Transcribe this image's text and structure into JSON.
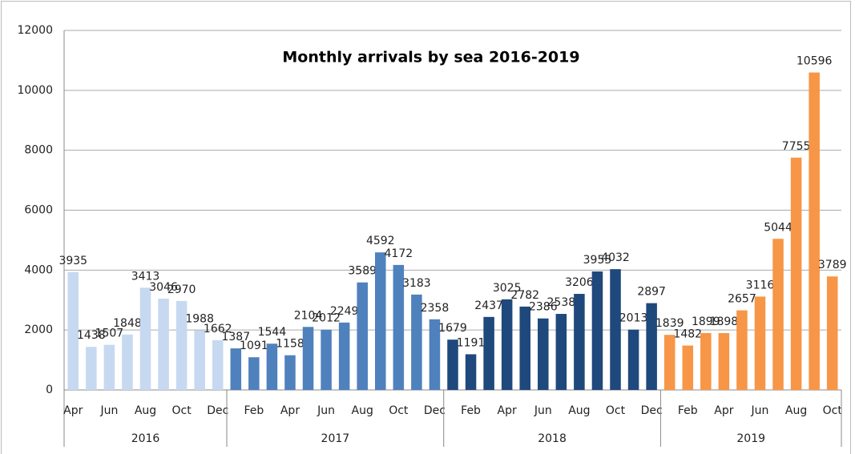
{
  "chart_data": {
    "type": "bar",
    "title": "Monthly arrivals by sea 2016-2019",
    "ylim": [
      0,
      12000
    ],
    "yticks": [
      0,
      2000,
      4000,
      6000,
      8000,
      10000,
      12000
    ],
    "grid": true,
    "series": [
      {
        "name": "2016",
        "color": "#c6d9f1",
        "categories": [
          "Apr",
          null,
          "Jun",
          null,
          "Aug",
          null,
          "Oct",
          null,
          "Dec"
        ],
        "values": [
          3935,
          1438,
          1507,
          1848,
          3413,
          3046,
          2970,
          1988,
          1662
        ]
      },
      {
        "name": "2017",
        "color": "#4f81bd",
        "categories": [
          null,
          "Feb",
          null,
          "Apr",
          null,
          "Jun",
          null,
          "Aug",
          null,
          "Oct",
          null,
          "Dec"
        ],
        "values": [
          1387,
          1091,
          1544,
          1158,
          2104,
          2012,
          2249,
          3589,
          4592,
          4172,
          3183,
          2358
        ]
      },
      {
        "name": "2018",
        "color": "#1f497d",
        "categories": [
          null,
          "Feb",
          null,
          "Apr",
          null,
          "Jun",
          null,
          "Aug",
          null,
          "Oct",
          null,
          "Dec"
        ],
        "values": [
          1679,
          1191,
          2437,
          3025,
          2782,
          2386,
          2538,
          3206,
          3955,
          4032,
          2013,
          2897
        ]
      },
      {
        "name": "2019",
        "color": "#f79646",
        "categories": [
          null,
          "Feb",
          null,
          "Apr",
          null,
          "Jun",
          null,
          "Aug",
          null,
          "Oct"
        ],
        "values": [
          1839,
          1482,
          1899,
          1898,
          2657,
          3116,
          5044,
          7755,
          10596,
          3789
        ]
      }
    ]
  }
}
